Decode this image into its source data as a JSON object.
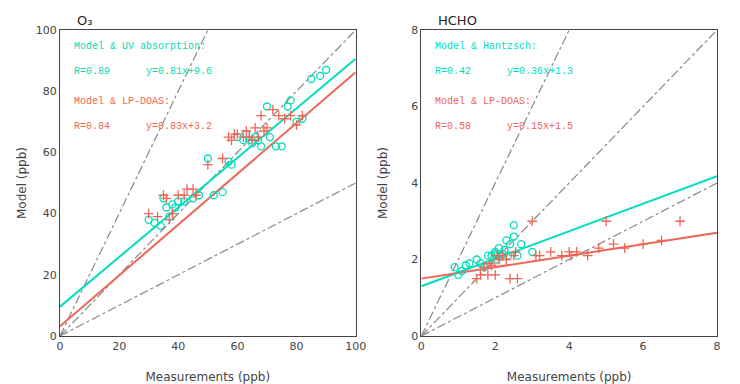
{
  "chart_data": [
    {
      "type": "scatter",
      "title": "O₃",
      "xlabel": "Measurements (ppb)",
      "ylabel": "Model (ppb)",
      "xlim": [
        0,
        100
      ],
      "ylim": [
        0,
        100
      ],
      "xticks": [
        0,
        20,
        40,
        60,
        80,
        100
      ],
      "yticks": [
        0,
        20,
        40,
        60,
        80,
        100
      ],
      "grid": false,
      "series": [
        {
          "type": "line",
          "line_style": "dashdot",
          "color": "#888888",
          "x": [
            0,
            50
          ],
          "values": [
            0,
            100
          ]
        },
        {
          "type": "line",
          "line_style": "dashdot",
          "color": "#888888",
          "x": [
            0,
            100
          ],
          "values": [
            0,
            100
          ]
        },
        {
          "type": "line",
          "line_style": "dashdot",
          "color": "#888888",
          "x": [
            0,
            100
          ],
          "values": [
            0,
            50
          ]
        },
        {
          "type": "line",
          "line_style": "solid",
          "color": "#00DDBB",
          "x": [
            0,
            100
          ],
          "values": [
            9.6,
            90.6
          ]
        },
        {
          "type": "line",
          "line_style": "solid",
          "color": "#EE6655",
          "x": [
            0,
            100
          ],
          "values": [
            3.2,
            86.2
          ]
        },
        {
          "type": "scatter",
          "marker": "circle-open",
          "color": "#00DDBB",
          "x": [
            30,
            32,
            34,
            35,
            36,
            37,
            38,
            39,
            40,
            42,
            45,
            47,
            50,
            52,
            55,
            57,
            58,
            60,
            62,
            63,
            64,
            65,
            66,
            67,
            68,
            70,
            71,
            73,
            75,
            77,
            78,
            80,
            82,
            85,
            88,
            90
          ],
          "values": [
            38,
            37,
            36,
            45,
            42,
            39,
            43,
            42,
            44,
            44,
            45,
            46,
            58,
            46,
            47,
            57,
            56,
            65,
            64,
            66,
            64,
            63,
            65,
            64,
            62,
            75,
            65,
            62,
            62,
            75,
            77,
            70,
            71,
            84,
            85,
            87
          ]
        },
        {
          "type": "scatter",
          "marker": "cross-thin",
          "color": "#EE6655",
          "x": [
            30,
            33,
            35,
            36,
            37,
            38,
            40,
            42,
            43,
            45,
            46,
            50,
            55,
            57,
            58,
            59,
            60,
            62,
            63,
            64,
            65,
            66,
            67,
            68,
            69,
            70,
            72,
            74,
            76,
            78,
            80,
            82
          ],
          "values": [
            40,
            39,
            46,
            45,
            38,
            40,
            46,
            46,
            48,
            48,
            46,
            56,
            58,
            65,
            64,
            66,
            66,
            65,
            67,
            65,
            64,
            68,
            65,
            72,
            67,
            68,
            74,
            72,
            71,
            72,
            69,
            72
          ]
        }
      ],
      "annotations": [
        {
          "text": "Model & UV absorption:",
          "color": "#00DDBB"
        },
        {
          "text": "R=0.89      y=0.81x+9.6",
          "color": "#00DDBB"
        },
        {
          "text": "Model & LP-DOAS:",
          "color": "#EE6655"
        },
        {
          "text": "R=0.84      y=0.83x+3.2",
          "color": "#EE6655"
        }
      ]
    },
    {
      "type": "scatter",
      "title": "HCHO",
      "xlabel": "Measurements (ppb)",
      "ylabel": "Model (ppb)",
      "xlim": [
        0,
        8
      ],
      "ylim": [
        0,
        8
      ],
      "xticks": [
        0,
        2,
        4,
        6,
        8
      ],
      "yticks": [
        0,
        2,
        4,
        6,
        8
      ],
      "grid": false,
      "series": [
        {
          "type": "line",
          "line_style": "dashdot",
          "color": "#888888",
          "x": [
            0,
            4
          ],
          "values": [
            0,
            8
          ]
        },
        {
          "type": "line",
          "line_style": "dashdot",
          "color": "#888888",
          "x": [
            0,
            8
          ],
          "values": [
            0,
            8
          ]
        },
        {
          "type": "line",
          "line_style": "dashdot",
          "color": "#888888",
          "x": [
            0,
            8
          ],
          "values": [
            0,
            4
          ]
        },
        {
          "type": "line",
          "line_style": "solid",
          "color": "#00DDBB",
          "x": [
            0,
            8
          ],
          "values": [
            1.3,
            4.18
          ]
        },
        {
          "type": "line",
          "line_style": "solid",
          "color": "#EE6655",
          "x": [
            0,
            8
          ],
          "values": [
            1.5,
            2.7
          ]
        },
        {
          "type": "scatter",
          "marker": "circle-open",
          "color": "#00DDBB",
          "x": [
            0.9,
            1.0,
            1.1,
            1.2,
            1.3,
            1.5,
            1.6,
            1.7,
            1.8,
            1.9,
            2.0,
            2.0,
            2.0,
            2.05,
            2.1,
            2.15,
            2.2,
            2.25,
            2.3,
            2.35,
            2.4,
            2.5,
            2.5,
            2.6,
            2.7,
            3.0
          ],
          "values": [
            1.8,
            1.6,
            1.7,
            1.85,
            1.9,
            2.0,
            1.9,
            1.8,
            2.1,
            2.1,
            2.1,
            2.2,
            2.15,
            2.0,
            2.3,
            2.1,
            2.15,
            2.25,
            2.5,
            2.1,
            2.4,
            2.9,
            2.6,
            2.1,
            2.4,
            2.2
          ]
        },
        {
          "type": "scatter",
          "marker": "cross-thin",
          "color": "#EE6655",
          "x": [
            1.5,
            1.6,
            1.7,
            1.8,
            1.85,
            1.9,
            2.0,
            2.05,
            2.1,
            2.2,
            2.3,
            2.4,
            2.5,
            2.55,
            2.6,
            3.0,
            3.1,
            3.2,
            3.5,
            3.8,
            4.0,
            4.05,
            4.2,
            4.5,
            4.8,
            5.0,
            5.2,
            5.5,
            6.0,
            6.5,
            7.0
          ],
          "values": [
            1.5,
            1.6,
            1.8,
            1.6,
            1.9,
            1.85,
            1.6,
            2.1,
            2.0,
            2.1,
            2.0,
            1.5,
            2.1,
            2.2,
            1.5,
            3.0,
            2.1,
            2.1,
            2.2,
            2.1,
            2.2,
            2.1,
            2.2,
            2.1,
            2.3,
            3.0,
            2.4,
            2.3,
            2.4,
            2.5,
            3.0
          ]
        }
      ],
      "annotations": [
        {
          "text": "Model & Hantzsch:",
          "color": "#00DDBB"
        },
        {
          "text": "R=0.42      y=0.36x+1.3",
          "color": "#00DDBB"
        },
        {
          "text": "Model & LP-DOAS:",
          "color": "#EE6655"
        },
        {
          "text": "R=0.58      y=0.15x+1.5",
          "color": "#EE6655"
        }
      ]
    }
  ]
}
